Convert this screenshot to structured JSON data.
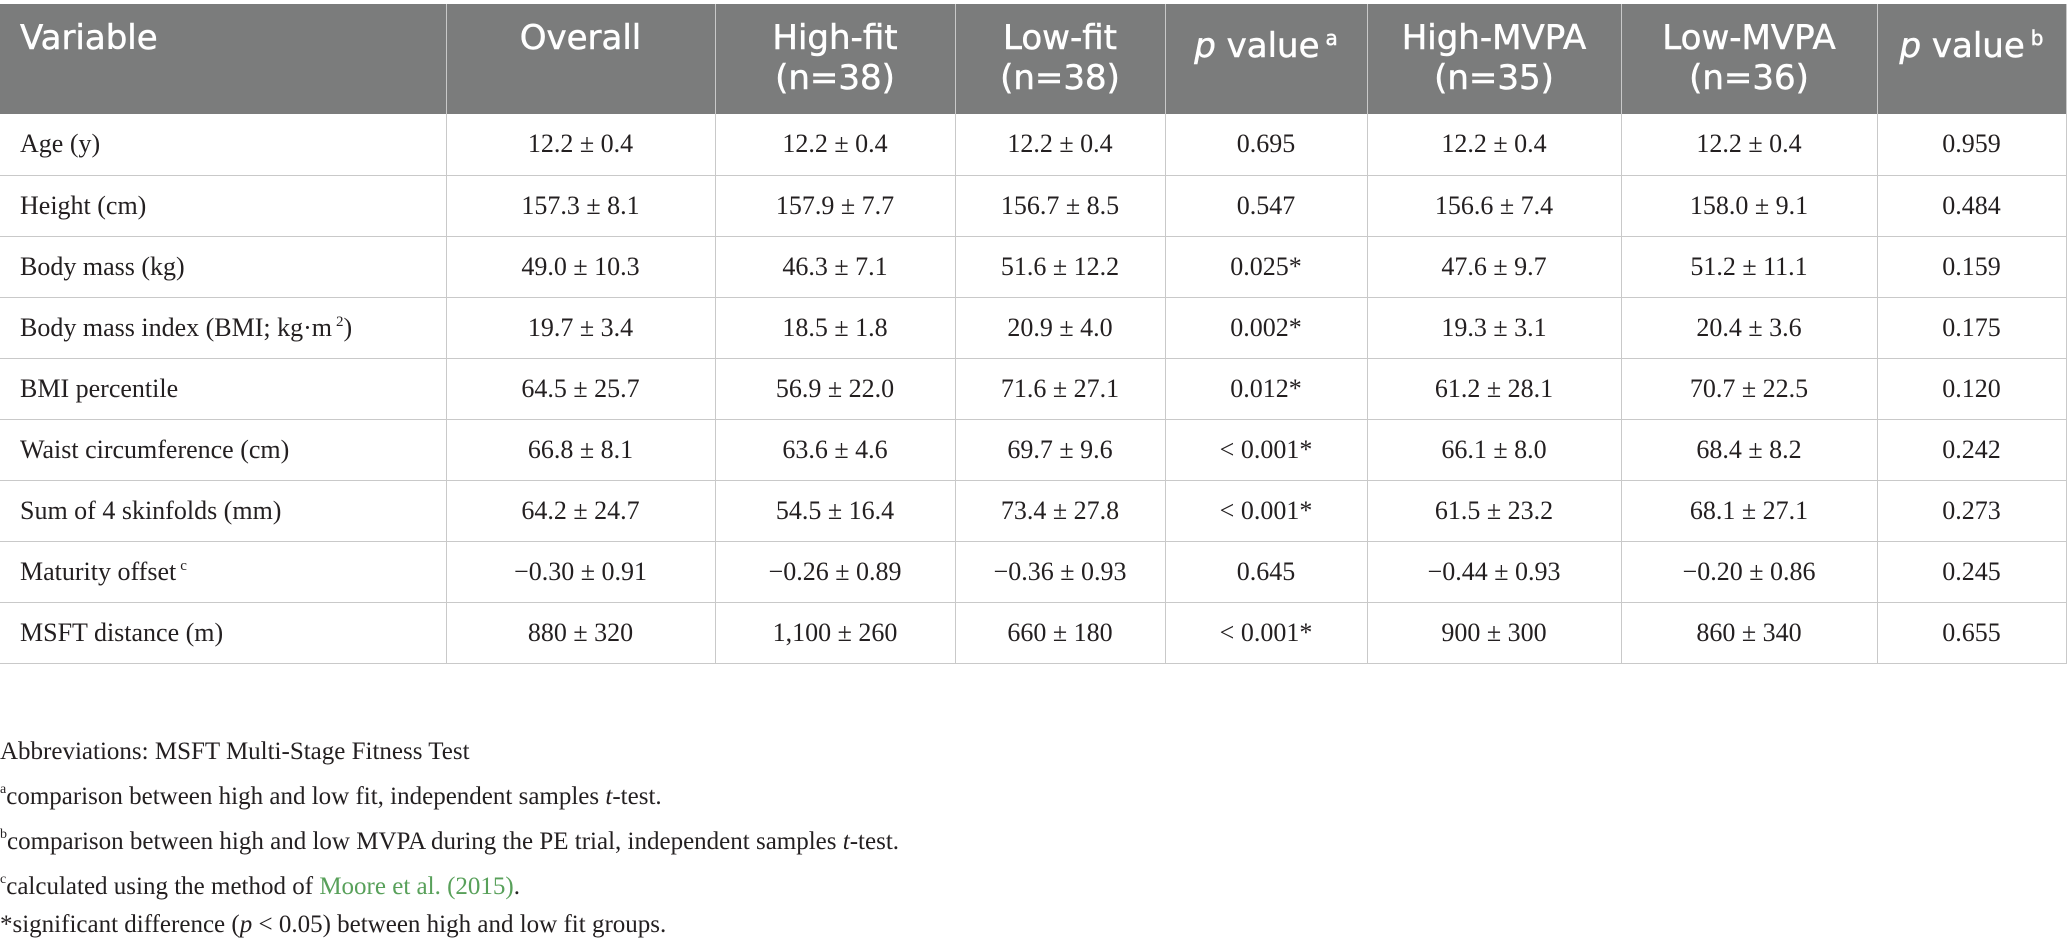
{
  "table": {
    "headers": [
      {
        "line1": "Variable",
        "line2": ""
      },
      {
        "line1": "Overall",
        "line2": ""
      },
      {
        "line1": "High-fit",
        "line2": "(n=38)"
      },
      {
        "line1": "Low-fit",
        "line2": "(n=38)"
      },
      {
        "italic": "p",
        "rest": " value",
        "sup": "a"
      },
      {
        "line1": "High-MVPA",
        "line2": "(n=35)"
      },
      {
        "line1": "Low-MVPA",
        "line2": "(n=36)"
      },
      {
        "italic": "p",
        "rest": " value",
        "sup": "b"
      }
    ],
    "rows": [
      {
        "label": "Age (y)",
        "label_sup": "",
        "label_suffix": "",
        "values": [
          "12.2 ± 0.4",
          "12.2 ± 0.4",
          "12.2 ± 0.4",
          "0.695",
          "12.2 ± 0.4",
          "12.2 ± 0.4",
          "0.959"
        ]
      },
      {
        "label": "Height (cm)",
        "label_sup": "",
        "label_suffix": "",
        "values": [
          "157.3 ± 8.1",
          "157.9 ± 7.7",
          "156.7 ± 8.5",
          "0.547",
          "156.6 ± 7.4",
          "158.0 ± 9.1",
          "0.484"
        ]
      },
      {
        "label": "Body mass (kg)",
        "label_sup": "",
        "label_suffix": "",
        "values": [
          "49.0 ± 10.3",
          "46.3 ± 7.1",
          "51.6 ± 12.2",
          "0.025*",
          "47.6 ± 9.7",
          "51.2 ± 11.1",
          "0.159"
        ]
      },
      {
        "label": "Body mass index (BMI; kg·m",
        "label_sup": "2",
        "label_suffix": ")",
        "values": [
          "19.7 ± 3.4",
          "18.5 ± 1.8",
          "20.9 ± 4.0",
          "0.002*",
          "19.3 ± 3.1",
          "20.4 ± 3.6",
          "0.175"
        ]
      },
      {
        "label": "BMI percentile",
        "label_sup": "",
        "label_suffix": "",
        "values": [
          "64.5 ± 25.7",
          "56.9 ± 22.0",
          "71.6 ± 27.1",
          "0.012*",
          "61.2 ± 28.1",
          "70.7 ± 22.5",
          "0.120"
        ]
      },
      {
        "label": "Waist circumference (cm)",
        "label_sup": "",
        "label_suffix": "",
        "values": [
          "66.8 ± 8.1",
          "63.6 ± 4.6",
          "69.7 ± 9.6",
          "< 0.001*",
          "66.1 ± 8.0",
          "68.4 ± 8.2",
          "0.242"
        ]
      },
      {
        "label": "Sum of 4 skinfolds (mm)",
        "label_sup": "",
        "label_suffix": "",
        "values": [
          "64.2 ± 24.7",
          "54.5 ± 16.4",
          "73.4 ± 27.8",
          "< 0.001*",
          "61.5 ± 23.2",
          "68.1 ± 27.1",
          "0.273"
        ]
      },
      {
        "label": "Maturity offset",
        "label_sup": "c",
        "label_suffix": "",
        "values": [
          "−0.30 ± 0.91",
          "−0.26 ± 0.89",
          "−0.36 ± 0.93",
          "0.645",
          "−0.44 ± 0.93",
          "−0.20 ± 0.86",
          "0.245"
        ]
      },
      {
        "label": "MSFT distance (m)",
        "label_sup": "",
        "label_suffix": "",
        "values": [
          "880 ± 320",
          "1,100 ± 260",
          "660 ± 180",
          "< 0.001*",
          "900 ± 300",
          "860 ± 340",
          "0.655"
        ]
      }
    ]
  },
  "notes": {
    "abbreviations": "Abbreviations: MSFT Multi-Stage Fitness Test",
    "a": {
      "mark": "a",
      "before": "comparison between high and low fit, independent samples ",
      "italic": "t",
      "after": "-test."
    },
    "b": {
      "mark": "b",
      "before": "comparison between high and low MVPA during the PE trial, independent samples ",
      "italic": "t",
      "after": "-test."
    },
    "c": {
      "mark": "c",
      "before": "calculated using the method of ",
      "link": "Moore et al. (2015)",
      "after": "."
    },
    "sig": {
      "before": "*significant difference (",
      "italic": "p",
      "after": " < 0.05) between high and low fit groups."
    }
  },
  "colors": {
    "header_bg": "#7b7c7c",
    "header_text": "#ffffff",
    "grid": "#c9c9c9",
    "link": "#58a05a"
  }
}
